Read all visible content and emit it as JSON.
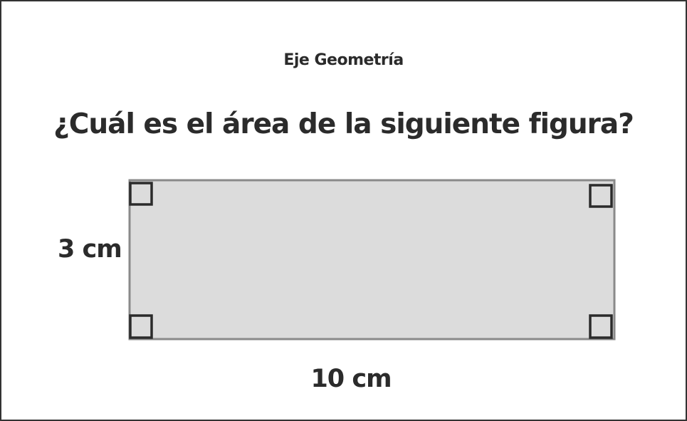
{
  "subject": "Eje Geometría",
  "question": "¿Cuál es el área de la siguiente figura?",
  "figure": {
    "shape": "rectangle",
    "height_label": "3 cm",
    "width_label": "10 cm",
    "right_angle_markers": 4,
    "fill_color": "#dcdcdc",
    "stroke_color": "#8a8a8a",
    "marker_color": "#2b2b2b"
  }
}
